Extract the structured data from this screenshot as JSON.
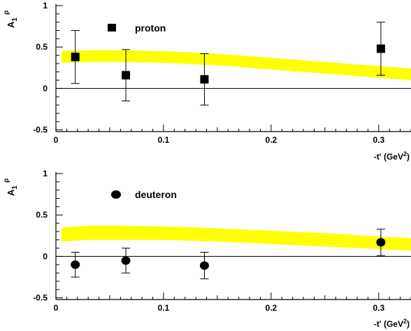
{
  "chart_data": [
    {
      "type": "scatter",
      "ylabel_main": "A",
      "ylabel_sub": "1",
      "ylabel_sup": "ρ",
      "xlabel_main": "-t' (GeV",
      "xlabel_sup": "2",
      "xlabel_end": ")",
      "xlim": [
        0,
        0.33
      ],
      "ylim": [
        -0.52,
        1.0
      ],
      "xticks": [
        "0",
        "0.1",
        "0.2",
        "0.3"
      ],
      "xtick_values": [
        0,
        0.1,
        0.2,
        0.3
      ],
      "yticks": [
        "-0.5",
        "0",
        "0.5",
        "1"
      ],
      "ytick_values": [
        -0.5,
        0,
        0.5,
        1
      ],
      "zero_line": true,
      "legend_label": "proton",
      "marker": "square",
      "band_color": "#ffff00",
      "series": [
        {
          "x": [
            0.018,
            0.065,
            0.138,
            0.302
          ],
          "y": [
            0.38,
            0.16,
            0.11,
            0.48
          ],
          "yerr": [
            0.32,
            0.31,
            0.31,
            0.32
          ]
        }
      ],
      "band": {
        "x": [
          0.005,
          0.03,
          0.06,
          0.1,
          0.15,
          0.2,
          0.25,
          0.3,
          0.33
        ],
        "lower": [
          0.31,
          0.32,
          0.32,
          0.31,
          0.28,
          0.23,
          0.18,
          0.13,
          0.1
        ],
        "upper": [
          0.45,
          0.46,
          0.46,
          0.45,
          0.42,
          0.37,
          0.32,
          0.27,
          0.24
        ]
      }
    },
    {
      "type": "scatter",
      "ylabel_main": "A",
      "ylabel_sub": "1",
      "ylabel_sup": "ρ",
      "xlabel_main": "-t' (GeV",
      "xlabel_sup": "2",
      "xlabel_end": ")",
      "xlim": [
        0,
        0.33
      ],
      "ylim": [
        -0.52,
        1.0
      ],
      "xticks": [
        "0",
        "0.1",
        "0.2",
        "0.3"
      ],
      "xtick_values": [
        0,
        0.1,
        0.2,
        0.3
      ],
      "yticks": [
        "-0.5",
        "0",
        "0.5",
        "1"
      ],
      "ytick_values": [
        -0.5,
        0,
        0.5,
        1
      ],
      "zero_line": true,
      "legend_label": "deuteron",
      "marker": "circle",
      "band_color": "#ffff00",
      "series": [
        {
          "x": [
            0.018,
            0.065,
            0.138,
            0.302
          ],
          "y": [
            -0.1,
            -0.05,
            -0.11,
            0.17
          ],
          "yerr": [
            0.15,
            0.15,
            0.16,
            0.16
          ]
        }
      ],
      "band": {
        "x": [
          0.005,
          0.03,
          0.06,
          0.1,
          0.15,
          0.2,
          0.25,
          0.3,
          0.33
        ],
        "lower": [
          0.18,
          0.2,
          0.2,
          0.2,
          0.18,
          0.15,
          0.12,
          0.09,
          0.07
        ],
        "upper": [
          0.35,
          0.37,
          0.37,
          0.36,
          0.34,
          0.31,
          0.28,
          0.24,
          0.22
        ]
      }
    }
  ]
}
